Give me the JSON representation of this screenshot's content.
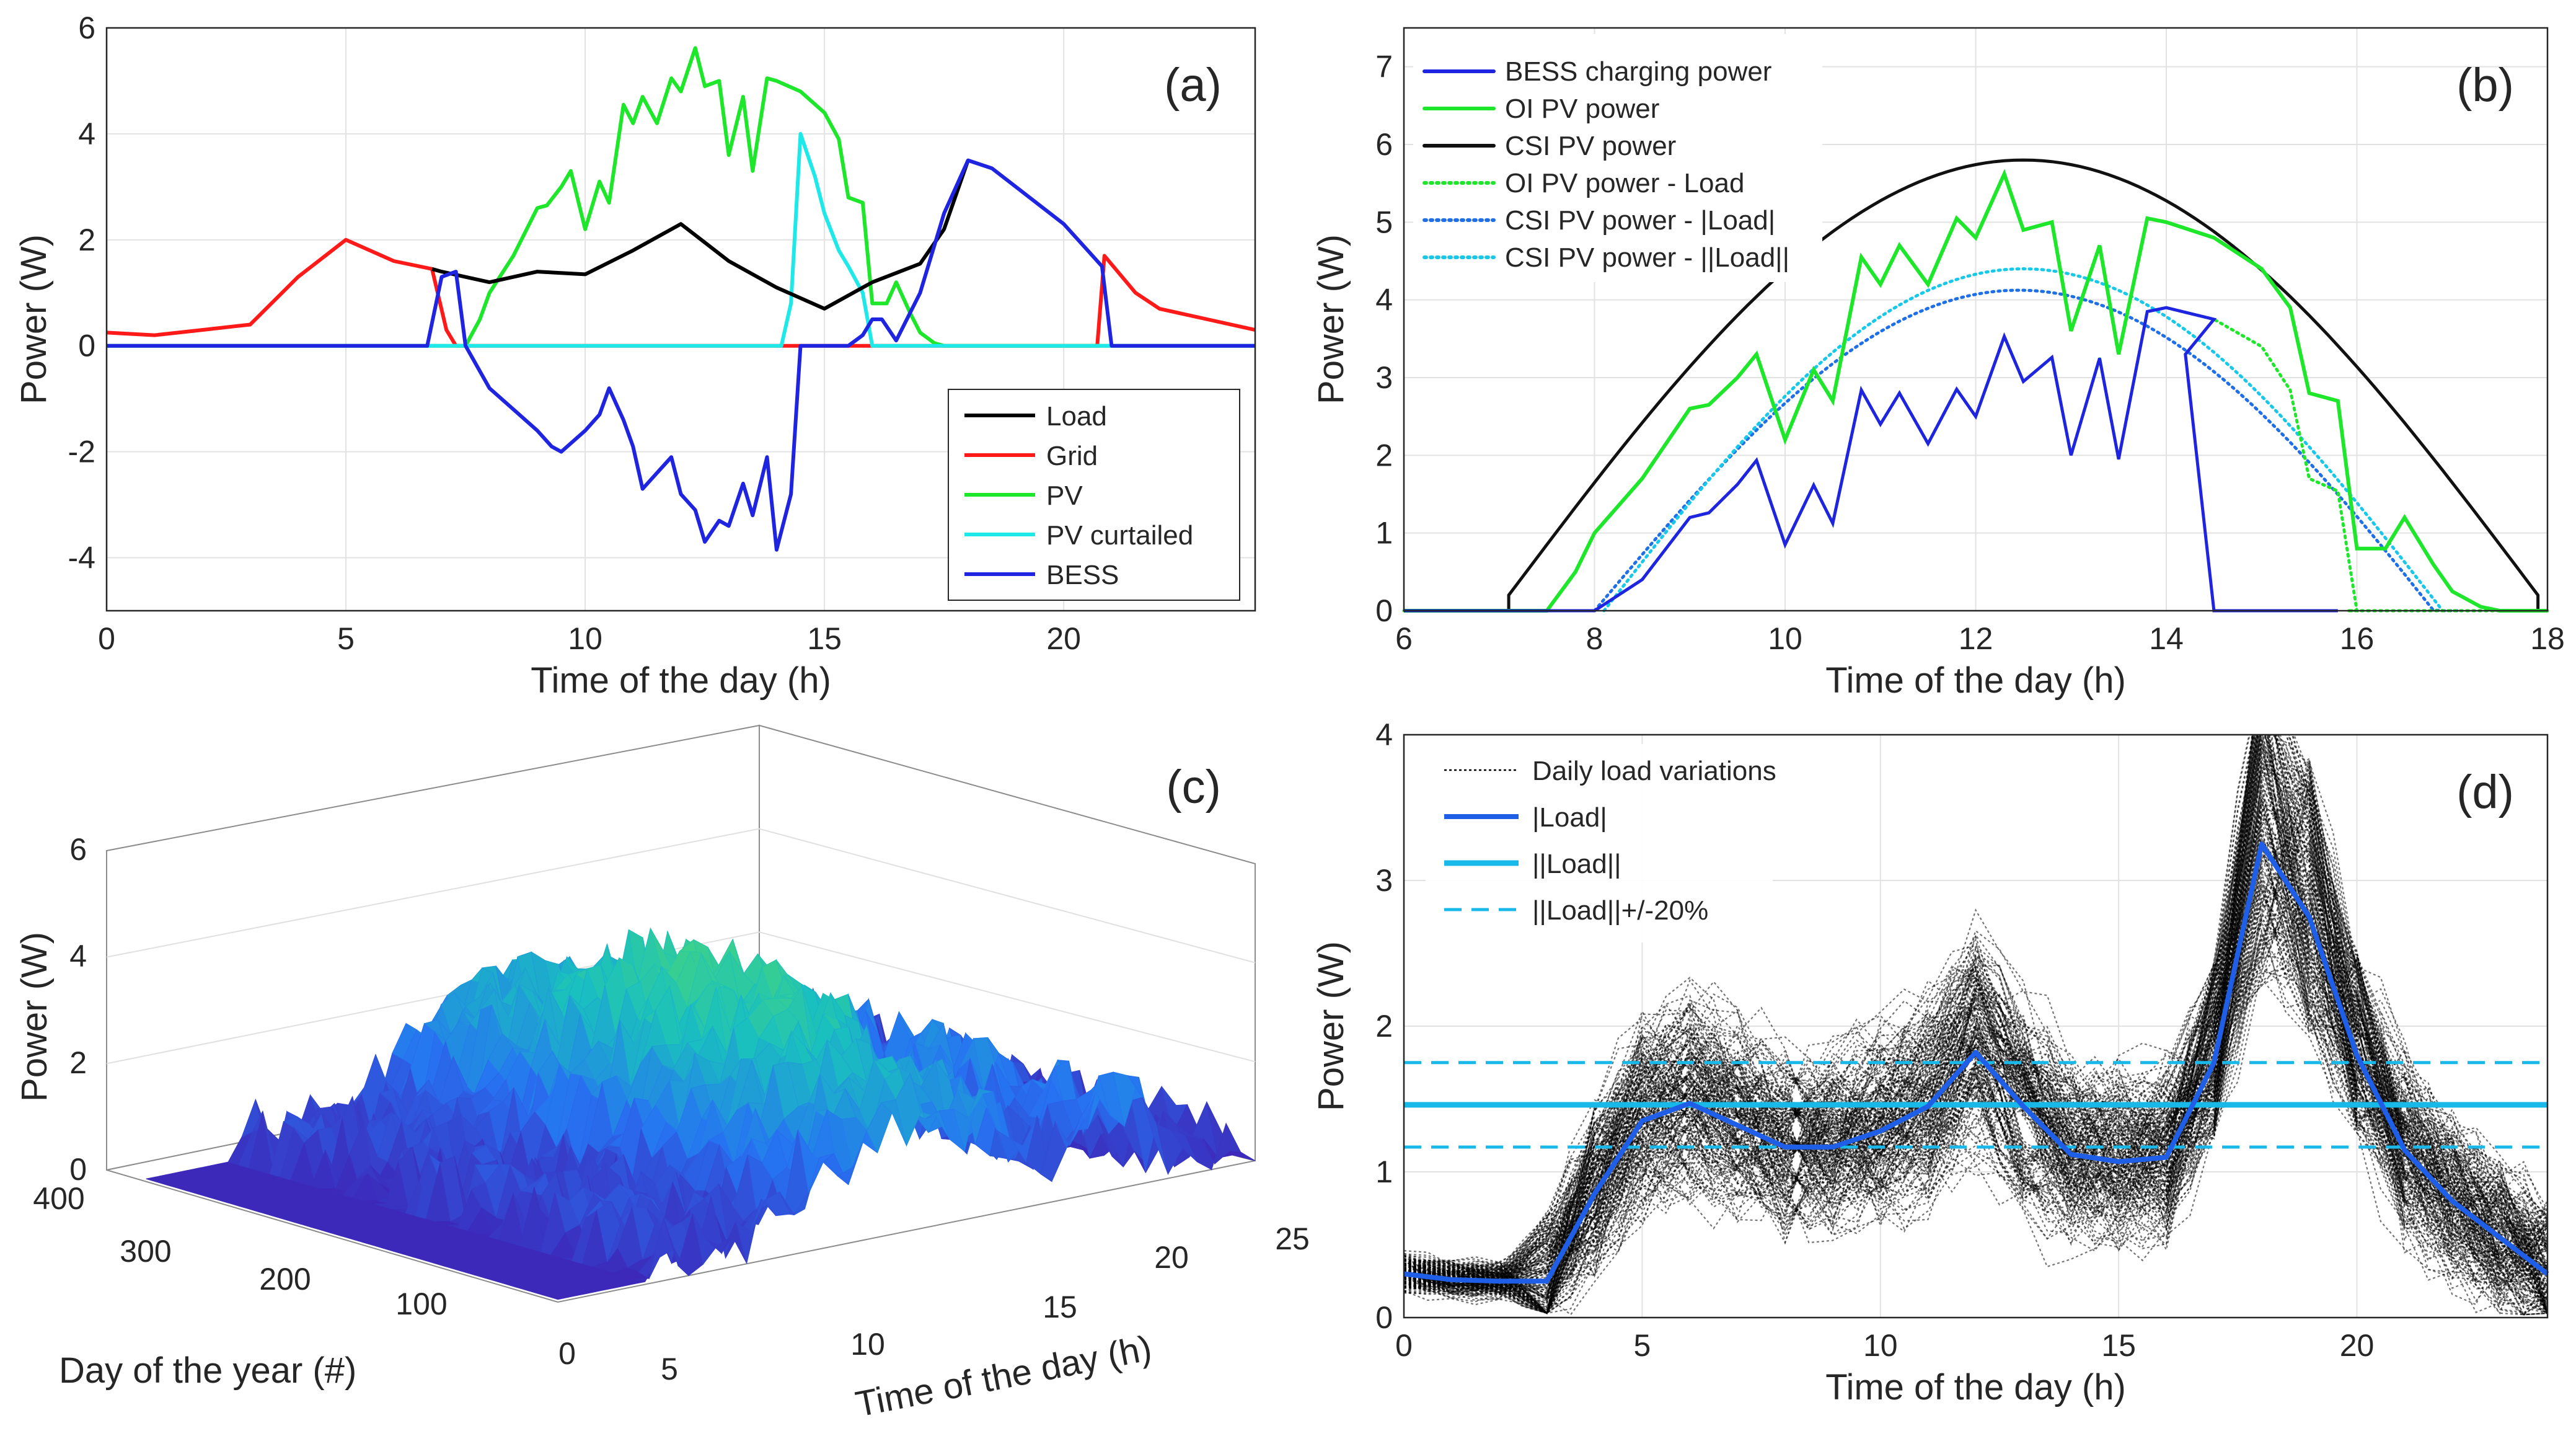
{
  "colors": {
    "load": "#000000",
    "grid": "#ff1a1a",
    "pv": "#1ee62a",
    "curtailed": "#1ee8e8",
    "bess": "#1f24e0",
    "blue_line": "#1f5fe8",
    "cyan_line": "#18b8e8"
  },
  "chart_data": [
    {
      "panel": "(a)",
      "type": "line",
      "xlabel": "Time of the day (h)",
      "ylabel": "Power (W)",
      "xlim": [
        0,
        24
      ],
      "ylim": [
        -5,
        6
      ],
      "xticks": [
        0,
        5,
        10,
        15,
        20
      ],
      "yticks": [
        -4,
        -2,
        0,
        2,
        4,
        6
      ],
      "series": [
        {
          "name": "Load",
          "color_key": "load",
          "x": [
            6.8,
            7,
            8,
            9,
            10,
            11,
            12,
            13,
            14,
            15,
            16,
            17,
            17.5,
            18
          ],
          "y": [
            1.45,
            1.4,
            1.2,
            1.4,
            1.35,
            1.8,
            2.3,
            1.6,
            1.1,
            0.7,
            1.2,
            1.55,
            2.2,
            3.5
          ]
        },
        {
          "name": "Grid",
          "color_key": "grid",
          "x": [
            0,
            1,
            2,
            3,
            4,
            5,
            6,
            6.8,
            7.1,
            7.3,
            20.7,
            20.85,
            21.5,
            22,
            23,
            24
          ],
          "y": [
            0.25,
            0.2,
            0.3,
            0.4,
            1.3,
            2.0,
            1.6,
            1.45,
            0.3,
            0,
            0,
            1.7,
            1.0,
            0.7,
            0.5,
            0.3
          ]
        },
        {
          "name": "PV",
          "color_key": "pv",
          "x": [
            0,
            7.5,
            7.8,
            8,
            8.5,
            9,
            9.2,
            9.5,
            9.7,
            10,
            10.3,
            10.5,
            10.8,
            11,
            11.2,
            11.5,
            11.8,
            12,
            12.3,
            12.5,
            12.8,
            13,
            13.3,
            13.5,
            13.8,
            14,
            14.5,
            15,
            15.3,
            15.5,
            15.8,
            16,
            16.3,
            16.5,
            16.8,
            17,
            17.3,
            17.5,
            24
          ],
          "y": [
            0,
            0,
            0.5,
            1,
            1.7,
            2.6,
            2.65,
            3.0,
            3.3,
            2.2,
            3.1,
            2.7,
            4.55,
            4.2,
            4.7,
            4.2,
            5.05,
            4.8,
            5.62,
            4.9,
            5.0,
            3.6,
            4.7,
            3.3,
            5.05,
            5.0,
            4.8,
            4.4,
            3.9,
            2.8,
            2.7,
            0.8,
            0.8,
            1.2,
            0.6,
            0.25,
            0.05,
            0,
            0
          ]
        },
        {
          "name": "PV curtailed",
          "color_key": "curtailed",
          "x": [
            0,
            14.1,
            14.3,
            14.5,
            14.8,
            15,
            15.3,
            15.5,
            15.8,
            16,
            24
          ],
          "y": [
            0,
            0,
            0.8,
            4.0,
            3.2,
            2.5,
            1.8,
            1.5,
            1.0,
            0,
            0
          ]
        },
        {
          "name": "BESS",
          "color_key": "bess",
          "x": [
            0,
            6.7,
            7.0,
            7.3,
            7.5,
            8,
            8.5,
            9,
            9.3,
            9.5,
            10,
            10.3,
            10.5,
            10.8,
            11,
            11.2,
            11.5,
            11.8,
            12,
            12.3,
            12.5,
            12.8,
            13,
            13.3,
            13.5,
            13.8,
            14,
            14.3,
            14.5,
            15,
            15.5,
            15.8,
            16,
            16.2,
            16.5,
            17,
            17.5,
            18,
            18.5,
            19,
            20,
            20.5,
            20.8,
            21,
            24
          ],
          "y": [
            0,
            0,
            1.3,
            1.4,
            0,
            -0.8,
            -1.2,
            -1.6,
            -1.9,
            -2.0,
            -1.6,
            -1.3,
            -0.8,
            -1.4,
            -1.9,
            -2.7,
            -2.4,
            -2.1,
            -2.8,
            -3.1,
            -3.7,
            -3.3,
            -3.4,
            -2.6,
            -3.2,
            -2.1,
            -3.85,
            -2.8,
            0,
            0,
            0,
            0.2,
            0.5,
            0.5,
            0.1,
            1.0,
            2.5,
            3.5,
            3.35,
            3.0,
            2.3,
            1.8,
            1.5,
            0,
            0
          ]
        }
      ],
      "legend": [
        "Load",
        "Grid",
        "PV",
        "PV curtailed",
        "BESS"
      ],
      "legend_location": "lower-right"
    },
    {
      "panel": "(b)",
      "type": "line",
      "xlabel": "Time of the day (h)",
      "ylabel": "Power (W)",
      "xlim": [
        6,
        18
      ],
      "ylim": [
        0,
        7.5
      ],
      "xticks": [
        6,
        8,
        10,
        12,
        14,
        16,
        18
      ],
      "yticks": [
        0,
        1,
        2,
        3,
        4,
        5,
        6,
        7
      ],
      "legend": [
        "BESS charging power",
        "OI PV power",
        "CSI PV power",
        "OI PV power - Load",
        "CSI PV power - |Load|",
        "CSI PV power - ||Load||"
      ],
      "legend_location": "top-left",
      "csi_peak": {
        "x": 12.7,
        "y": 5.8
      },
      "csi_range": [
        7.1,
        17.9
      ]
    },
    {
      "panel": "(c)",
      "type": "surface3d",
      "xlabel": "Time of the day (h)",
      "ylabel": "Day of the year (#)",
      "zlabel": "Power (W)",
      "xticks": [
        5,
        10,
        15,
        20,
        25
      ],
      "yticks": [
        0,
        100,
        200,
        300,
        400
      ],
      "zticks": [
        0,
        2,
        4,
        6
      ]
    },
    {
      "panel": "(d)",
      "type": "line",
      "xlabel": "Time of the day (h)",
      "ylabel": "Power (W)",
      "xlim": [
        0,
        24
      ],
      "ylim": [
        0,
        4
      ],
      "xticks": [
        0,
        5,
        10,
        15,
        20
      ],
      "yticks": [
        0,
        1,
        2,
        3,
        4
      ],
      "mean_load": {
        "x": [
          0,
          1,
          2,
          3,
          4,
          5,
          6,
          7,
          8,
          9,
          10,
          11,
          12,
          13,
          14,
          15,
          16,
          17,
          18,
          19,
          20,
          21,
          22,
          23,
          24
        ],
        "y": [
          0.3,
          0.26,
          0.25,
          0.25,
          0.85,
          1.35,
          1.47,
          1.32,
          1.17,
          1.17,
          1.28,
          1.45,
          1.82,
          1.45,
          1.12,
          1.07,
          1.1,
          1.75,
          3.25,
          2.75,
          1.8,
          1.15,
          0.8,
          0.55,
          0.3
        ]
      },
      "norm_load": 1.46,
      "band": [
        1.17,
        1.75
      ],
      "legend": [
        "Daily load variations",
        "|Load|",
        "||Load||",
        "||Load||+/-20%"
      ],
      "legend_location": "top-left"
    }
  ]
}
